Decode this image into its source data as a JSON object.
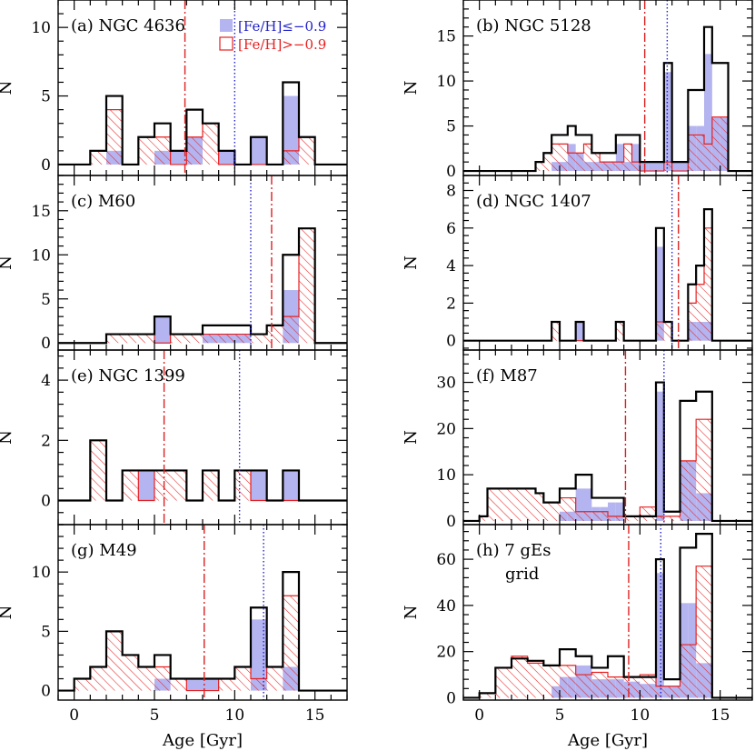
{
  "colors": {
    "total": "#000000",
    "metal_poor": "#b4b4f0",
    "metal_rich": "#e62020",
    "blue_line": "#2020cc",
    "red_line": "#dd2020"
  },
  "legend": {
    "metal_poor_label": "[Fe/H]≤−0.9",
    "metal_rich_label": "[Fe/H]>−0.9"
  },
  "chart_data": [
    {
      "type": "histogram",
      "panel": "a",
      "title": "(a) NGC 4636",
      "xlabel": "",
      "ylabel": "N",
      "xlim": [
        -1,
        17
      ],
      "ylim": [
        -0.8,
        12
      ],
      "yticks": [
        0,
        5,
        10
      ],
      "xticks": [
        0,
        5,
        10,
        15
      ],
      "show_xtick_labels": false,
      "bin_width": 1,
      "bin_starts": [
        -1,
        0,
        1,
        2,
        3,
        4,
        5,
        6,
        7,
        8,
        9,
        10,
        11,
        12,
        13,
        14,
        15,
        16
      ],
      "series": [
        {
          "values": [
            0,
            0,
            1,
            5,
            0,
            2,
            3,
            1,
            4,
            3,
            1,
            0,
            2,
            0,
            6,
            2,
            0,
            0
          ]
        },
        {
          "values": [
            0,
            0,
            0,
            1,
            0,
            0,
            1,
            1,
            2,
            0,
            1,
            0,
            2,
            0,
            5,
            0,
            0,
            0
          ]
        },
        {
          "values": [
            0,
            0,
            1,
            4,
            0,
            2,
            2,
            0,
            2,
            3,
            0,
            0,
            0,
            0,
            1,
            2,
            0,
            0
          ]
        }
      ],
      "vline_blue": 10,
      "vline_red": 6.9
    },
    {
      "type": "histogram",
      "panel": "b",
      "title": "(b) NGC 5128",
      "xlabel": "",
      "ylabel": "N",
      "xlim": [
        -1,
        17
      ],
      "ylim": [
        -0.5,
        19
      ],
      "yticks": [
        0,
        5,
        10,
        15
      ],
      "xticks": [
        0,
        5,
        10,
        15
      ],
      "show_xtick_labels": false,
      "bin_width": 0.5,
      "bin_starts": [
        -0.5,
        0,
        0.5,
        1,
        1.5,
        2,
        2.5,
        3,
        3.5,
        4,
        4.5,
        5,
        5.5,
        6,
        6.5,
        7,
        7.5,
        8,
        8.5,
        9,
        9.5,
        10,
        10.5,
        11,
        11.5,
        12,
        12.5,
        13,
        13.5,
        14,
        14.5,
        15,
        15.5,
        16,
        16.5
      ],
      "series": [
        {
          "values": [
            0,
            0,
            0,
            0,
            0,
            0,
            0,
            0,
            1,
            2,
            4,
            4,
            5,
            4,
            4,
            2,
            2,
            2,
            4,
            4,
            4,
            1,
            1,
            1,
            12,
            1,
            1,
            9,
            9,
            16,
            12,
            12,
            0,
            0,
            0
          ]
        },
        {
          "values": [
            0,
            0,
            0,
            0,
            0,
            0,
            0,
            0,
            0,
            0,
            1,
            1,
            3,
            2,
            1,
            1,
            1,
            1,
            3,
            1,
            3,
            1,
            1,
            1,
            11,
            1,
            1,
            5,
            5,
            13,
            6,
            6,
            0,
            0,
            0
          ]
        },
        {
          "values": [
            0,
            0,
            0,
            0,
            0,
            0,
            0,
            0,
            1,
            2,
            3,
            3,
            2,
            2,
            3,
            2,
            1,
            1,
            1,
            3,
            1,
            0,
            0,
            0,
            1,
            0,
            0,
            4,
            4,
            3,
            6,
            6,
            0,
            0,
            0
          ]
        }
      ],
      "vline_blue": 11.7,
      "vline_red": 10.3
    },
    {
      "type": "histogram",
      "panel": "c",
      "title": "(c) M60",
      "xlabel": "",
      "ylabel": "N",
      "xlim": [
        -1,
        17
      ],
      "ylim": [
        -0.8,
        19
      ],
      "yticks": [
        0,
        5,
        10,
        15
      ],
      "xticks": [
        0,
        5,
        10,
        15
      ],
      "show_xtick_labels": false,
      "bin_width": 1,
      "bin_starts": [
        -1,
        0,
        1,
        2,
        3,
        4,
        5,
        6,
        7,
        8,
        9,
        10,
        11,
        12,
        13,
        14,
        15,
        16
      ],
      "series": [
        {
          "values": [
            0,
            0,
            0,
            1,
            1,
            1,
            3,
            1,
            1,
            2,
            2,
            2,
            1,
            2,
            10,
            13,
            0,
            0
          ]
        },
        {
          "values": [
            0,
            0,
            0,
            0,
            0,
            0,
            3,
            0,
            0,
            1,
            1,
            1,
            0,
            0,
            6,
            0,
            0,
            0
          ]
        },
        {
          "values": [
            0,
            0,
            0,
            1,
            1,
            1,
            0,
            1,
            1,
            1,
            1,
            1,
            1,
            2,
            3,
            13,
            0,
            0
          ]
        }
      ],
      "vline_blue": 11.0,
      "vline_red": 12.3
    },
    {
      "type": "histogram",
      "panel": "d",
      "title": "(d) NGC 1407",
      "xlabel": "",
      "ylabel": "N",
      "xlim": [
        -1,
        17
      ],
      "ylim": [
        -0.5,
        8.8
      ],
      "yticks": [
        0,
        2,
        4,
        6,
        8
      ],
      "xticks": [
        0,
        5,
        10,
        15
      ],
      "show_xtick_labels": false,
      "bin_width": 0.5,
      "bin_starts": [
        -0.5,
        0,
        0.5,
        1,
        1.5,
        2,
        2.5,
        3,
        3.5,
        4,
        4.5,
        5,
        5.5,
        6,
        6.5,
        7,
        7.5,
        8,
        8.5,
        9,
        9.5,
        10,
        10.5,
        11,
        11.5,
        12,
        12.5,
        13,
        13.5,
        14,
        14.5,
        15,
        15.5,
        16,
        16.5
      ],
      "series": [
        {
          "values": [
            0,
            0,
            0,
            0,
            0,
            0,
            0,
            0,
            0,
            0,
            1,
            0,
            0,
            1,
            0,
            0,
            0,
            0,
            1,
            0,
            0,
            0,
            0,
            6,
            1,
            0,
            0,
            3,
            4,
            7,
            0,
            0,
            0,
            0,
            0
          ]
        },
        {
          "values": [
            0,
            0,
            0,
            0,
            0,
            0,
            0,
            0,
            0,
            0,
            0,
            0,
            0,
            1,
            0,
            0,
            0,
            0,
            0,
            0,
            0,
            0,
            0,
            5,
            0,
            0,
            0,
            1,
            1,
            1,
            0,
            0,
            0,
            0,
            0
          ]
        },
        {
          "values": [
            0,
            0,
            0,
            0,
            0,
            0,
            0,
            0,
            0,
            0,
            1,
            0,
            0,
            0,
            0,
            0,
            0,
            0,
            1,
            0,
            0,
            0,
            0,
            1,
            1,
            0,
            0,
            2,
            3,
            6,
            0,
            0,
            0,
            0,
            0
          ]
        }
      ],
      "vline_blue": 12.0,
      "vline_red": 12.4
    },
    {
      "type": "histogram",
      "panel": "e",
      "title": "(e) NGC 1399",
      "xlabel": "",
      "ylabel": "N",
      "xlim": [
        -1,
        17
      ],
      "ylim": [
        -0.8,
        5
      ],
      "yticks": [
        0,
        2,
        4
      ],
      "xticks": [
        0,
        5,
        10,
        15
      ],
      "show_xtick_labels": false,
      "bin_width": 1,
      "bin_starts": [
        -1,
        0,
        1,
        2,
        3,
        4,
        5,
        6,
        7,
        8,
        9,
        10,
        11,
        12,
        13,
        14,
        15,
        16
      ],
      "series": [
        {
          "values": [
            0,
            0,
            2,
            0,
            1,
            1,
            1,
            1,
            0,
            1,
            0,
            1,
            1,
            0,
            1,
            0,
            0,
            0
          ]
        },
        {
          "values": [
            0,
            0,
            0,
            0,
            0,
            1,
            0,
            0,
            0,
            0,
            0,
            0,
            1,
            0,
            1,
            0,
            0,
            0
          ]
        },
        {
          "values": [
            0,
            0,
            2,
            0,
            1,
            0,
            1,
            1,
            0,
            1,
            0,
            1,
            0,
            0,
            0,
            0,
            0,
            0
          ]
        }
      ],
      "vline_blue": 10.3,
      "vline_red": 5.6
    },
    {
      "type": "histogram",
      "panel": "f",
      "title": "(f) M87",
      "xlabel": "",
      "ylabel": "N",
      "xlim": [
        -1,
        17
      ],
      "ylim": [
        -0.8,
        37
      ],
      "yticks": [
        0,
        10,
        20,
        30
      ],
      "xticks": [
        0,
        5,
        10,
        15
      ],
      "show_xtick_labels": false,
      "bin_width": 0.5,
      "bin_starts": [
        -0.5,
        0,
        0.5,
        1,
        1.5,
        2,
        2.5,
        3,
        3.5,
        4,
        4.5,
        5,
        5.5,
        6,
        6.5,
        7,
        7.5,
        8,
        8.5,
        9,
        9.5,
        10,
        10.5,
        11,
        11.5,
        12,
        12.5,
        13,
        13.5,
        14,
        14.5,
        15,
        15.5,
        16,
        16.5
      ],
      "series": [
        {
          "values": [
            0,
            1,
            7,
            7,
            7,
            7,
            7,
            7,
            6,
            4,
            4,
            7,
            7,
            10,
            10,
            5,
            5,
            5,
            5,
            1,
            1,
            1,
            1,
            30,
            2,
            2,
            26,
            26,
            28,
            28,
            0,
            0,
            0,
            0,
            0
          ]
        },
        {
          "values": [
            0,
            0,
            0,
            0,
            0,
            0,
            0,
            0,
            0,
            0,
            0,
            2,
            2,
            7,
            7,
            3,
            3,
            4,
            4,
            0,
            0,
            0,
            0,
            28,
            0,
            0,
            13,
            13,
            6,
            6,
            0,
            0,
            0,
            0,
            0
          ]
        },
        {
          "values": [
            0,
            1,
            7,
            7,
            7,
            7,
            7,
            7,
            6,
            4,
            4,
            5,
            5,
            2,
            2,
            2,
            2,
            1,
            1,
            1,
            1,
            3,
            3,
            1,
            1,
            1,
            13,
            13,
            22,
            22,
            0,
            0,
            0,
            0,
            0
          ]
        }
      ],
      "vline_blue": 11.5,
      "vline_red": 9.1
    },
    {
      "type": "histogram",
      "panel": "g",
      "title": "(g) M49",
      "xlabel": "Age [Gyr]",
      "ylabel": "N",
      "xlim": [
        -1,
        17
      ],
      "ylim": [
        -0.8,
        14
      ],
      "yticks": [
        0,
        5,
        10
      ],
      "xticks": [
        0,
        5,
        10,
        15
      ],
      "show_xtick_labels": true,
      "bin_width": 1,
      "bin_starts": [
        -1,
        0,
        1,
        2,
        3,
        4,
        5,
        6,
        7,
        8,
        9,
        10,
        11,
        12,
        13,
        14,
        15,
        16
      ],
      "series": [
        {
          "values": [
            0,
            1,
            2,
            5,
            3,
            2,
            3,
            1,
            1,
            1,
            1,
            2,
            7,
            2,
            10,
            0,
            0,
            0
          ]
        },
        {
          "values": [
            0,
            0,
            0,
            0,
            0,
            0,
            1,
            0,
            1,
            1,
            0,
            0,
            6,
            0,
            2,
            0,
            0,
            0
          ]
        },
        {
          "values": [
            0,
            1,
            2,
            5,
            3,
            2,
            2,
            1,
            0,
            0,
            1,
            2,
            1,
            2,
            8,
            0,
            0,
            0
          ]
        }
      ],
      "vline_blue": 11.8,
      "vline_red": 8.1
    },
    {
      "type": "histogram",
      "panel": "h",
      "title": "(h) 7 gEs",
      "subtitle": "grid",
      "xlabel": "Age [Gyr]",
      "ylabel": "N",
      "xlim": [
        -1,
        17
      ],
      "ylim": [
        -1,
        75
      ],
      "yticks": [
        0,
        20,
        40,
        60
      ],
      "xticks": [
        0,
        5,
        10,
        15
      ],
      "show_xtick_labels": true,
      "bin_width": 0.5,
      "bin_starts": [
        -0.5,
        0,
        0.5,
        1,
        1.5,
        2,
        2.5,
        3,
        3.5,
        4,
        4.5,
        5,
        5.5,
        6,
        6.5,
        7,
        7.5,
        8,
        8.5,
        9,
        9.5,
        10,
        10.5,
        11,
        11.5,
        12,
        12.5,
        13,
        13.5,
        14,
        14.5,
        15,
        15.5,
        16,
        16.5
      ],
      "series": [
        {
          "values": [
            0,
            2,
            2,
            13,
            13,
            17,
            17,
            16,
            16,
            14,
            14,
            21,
            21,
            18,
            18,
            13,
            13,
            18,
            18,
            9,
            9,
            9,
            9,
            60,
            8,
            8,
            65,
            65,
            71,
            71,
            0,
            0,
            0,
            0,
            0
          ]
        },
        {
          "values": [
            0,
            0,
            0,
            0,
            0,
            0,
            0,
            0,
            0,
            0,
            5,
            9,
            9,
            14,
            14,
            8,
            8,
            8,
            8,
            7,
            7,
            6,
            6,
            54,
            5,
            5,
            41,
            41,
            15,
            15,
            0,
            0,
            0,
            0,
            0
          ]
        },
        {
          "values": [
            0,
            2,
            2,
            13,
            13,
            18,
            18,
            15,
            15,
            14,
            14,
            14,
            14,
            10,
            10,
            11,
            11,
            9,
            9,
            9,
            9,
            10,
            10,
            5,
            5,
            5,
            23,
            23,
            57,
            57,
            0,
            0,
            0,
            0,
            0
          ]
        }
      ],
      "vline_blue": 11.3,
      "vline_red": 9.3
    }
  ]
}
